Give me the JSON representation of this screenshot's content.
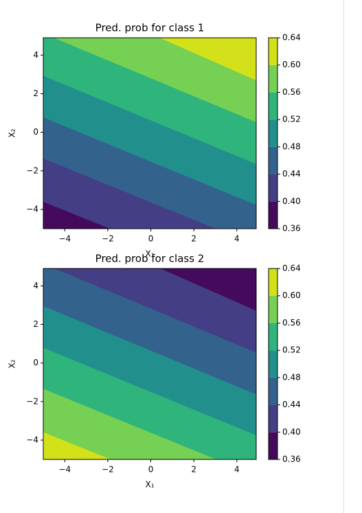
{
  "chart_data": [
    {
      "type": "contour",
      "title": "Pred. prob for class 1",
      "xlabel": "X₁",
      "ylabel": "X₂",
      "xlim": [
        -5,
        4.9
      ],
      "ylim": [
        -5,
        4.9
      ],
      "xticks": [
        {
          "value": -4,
          "label": "−4"
        },
        {
          "value": -2,
          "label": "−2"
        },
        0,
        2,
        4
      ],
      "yticks": [
        {
          "value": -4,
          "label": "−4"
        },
        {
          "value": -2,
          "label": "−2"
        },
        0,
        2,
        4
      ],
      "levels": [
        0.36,
        {
          "value": 0.4,
          "label": "0.40"
        },
        0.44,
        0.48,
        0.52,
        0.56,
        {
          "value": 0.6,
          "label": "0.60"
        },
        0.64
      ],
      "colors": [
        "#450a5c",
        "#433e85",
        "#33638d",
        "#21908d",
        "#2fb47c",
        "#76d054",
        "#d3e11b"
      ],
      "boundaries": [
        [
          [
            -5,
            -3.6
          ],
          [
            -2.1,
            -4.9
          ]
        ],
        [
          [
            -5,
            -1.35
          ],
          [
            2.8,
            -4.9
          ]
        ],
        [
          [
            -5,
            0.78
          ],
          [
            4.9,
            -3.76
          ]
        ],
        [
          [
            -5,
            2.94
          ],
          [
            4.9,
            -1.64
          ]
        ],
        [
          [
            -4.5,
            4.9
          ],
          [
            4.9,
            0.53
          ]
        ],
        [
          [
            0.42,
            4.9
          ],
          [
            4.9,
            2.7
          ]
        ]
      ]
    },
    {
      "type": "contour",
      "title": "Pred. prob for class 2",
      "xlabel": "X₁",
      "ylabel": "X₂",
      "xlim": [
        -5,
        4.9
      ],
      "ylim": [
        -5,
        4.9
      ],
      "xticks": [
        {
          "value": -4,
          "label": "−4"
        },
        {
          "value": -2,
          "label": "−2"
        },
        0,
        2,
        4
      ],
      "yticks": [
        {
          "value": -4,
          "label": "−4"
        },
        {
          "value": -2,
          "label": "−2"
        },
        0,
        2,
        4
      ],
      "levels": [
        0.36,
        {
          "value": 0.4,
          "label": "0.40"
        },
        0.44,
        0.48,
        0.52,
        0.56,
        {
          "value": 0.6,
          "label": "0.60"
        },
        0.64
      ],
      "colors": [
        "#450a5c",
        "#433e85",
        "#33638d",
        "#21908d",
        "#2fb47c",
        "#76d054",
        "#d3e11b"
      ],
      "boundaries": [
        [
          [
            0.42,
            4.9
          ],
          [
            4.9,
            2.7
          ]
        ],
        [
          [
            -4.5,
            4.9
          ],
          [
            4.9,
            0.53
          ]
        ],
        [
          [
            -5,
            2.94
          ],
          [
            4.9,
            -1.64
          ]
        ],
        [
          [
            -5,
            0.78
          ],
          [
            4.9,
            -3.76
          ]
        ],
        [
          [
            -5,
            -1.35
          ],
          [
            2.8,
            -4.9
          ]
        ],
        [
          [
            -5,
            -3.6
          ],
          [
            -2.1,
            -4.9
          ]
        ]
      ]
    }
  ]
}
